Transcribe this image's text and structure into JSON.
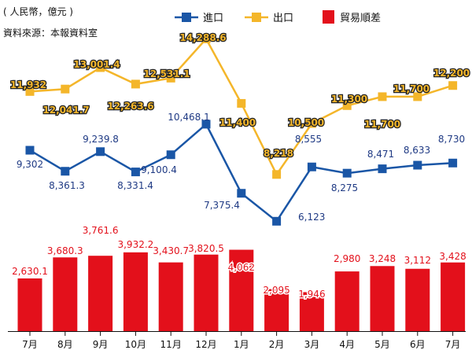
{
  "header": {
    "unit_note": "( 人民幣，億元 )",
    "source_note": "資料來源：本報資料室"
  },
  "colors": {
    "import": "#1a56a6",
    "export": "#f4b62a",
    "balance": "#e3101b",
    "import_label": "#1f3a84",
    "balance_label": "#e3101b"
  },
  "chart_data": [
    {
      "type": "line",
      "categories": [
        "7月",
        "8月",
        "9月",
        "10月",
        "11月",
        "12月",
        "1月",
        "2月",
        "3月",
        "4月",
        "5月",
        "6月",
        "7月"
      ],
      "series": [
        {
          "name": "進口",
          "values": [
            9302,
            8361.3,
            9239.8,
            8331.4,
            9100.4,
            10468.1,
            7375.4,
            6123,
            8555,
            8275,
            8471,
            8633,
            8730
          ],
          "labels": [
            "9,302",
            "8,361.3",
            "9,239.8",
            "8,331.4",
            "9,100.4",
            "10,468.1",
            "7,375.4",
            "6,123",
            "8,555",
            "8,275",
            "8,471",
            "8,633",
            "8,730"
          ]
        },
        {
          "name": "出口",
          "values": [
            11932,
            12041.7,
            13001.4,
            12263.6,
            12531.1,
            14288.6,
            11400,
            8218,
            10500,
            11300,
            11700,
            11700,
            12200
          ],
          "labels": [
            "11,932",
            "12,041.7",
            "13,001.4",
            "12,263.6",
            "12,531.1",
            "14,288.6",
            "11,400",
            "8,218",
            "10,500",
            "11,300",
            "11,700",
            "11,700",
            "12,200"
          ]
        }
      ],
      "legend_position": "top"
    },
    {
      "type": "bar",
      "categories": [
        "7月",
        "8月",
        "9月",
        "10月",
        "11月",
        "12月",
        "1月",
        "2月",
        "3月",
        "4月",
        "5月",
        "6月",
        "7月"
      ],
      "series": [
        {
          "name": "貿易順差",
          "values": [
            2630.1,
            3680.3,
            3761.6,
            3932.2,
            3430.7,
            3820.5,
            4062,
            2095,
            1946,
            2980,
            3248,
            3112,
            3428
          ],
          "labels": [
            "2,630.1",
            "3,680.3",
            "3,761.6",
            "3,932.2",
            "3,430.7",
            "3,820.5",
            "4,062",
            "2,095",
            "1,946",
            "2,980",
            "3,248",
            "3,112",
            "3,428"
          ]
        }
      ]
    }
  ]
}
